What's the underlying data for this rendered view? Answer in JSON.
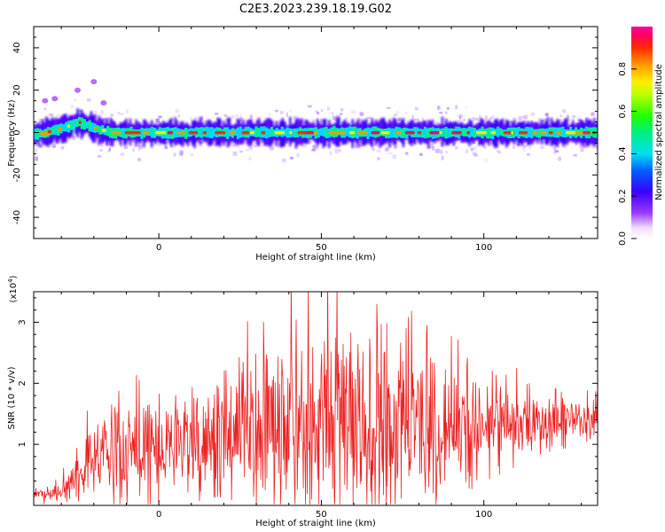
{
  "title": "C2E3.2023.239.18.19.G02",
  "chart_data": [
    {
      "type": "heatmap",
      "xlabel": "Height of straight line (km)",
      "ylabel": "Frequency (Hz)",
      "xlim": [
        -38.5,
        135
      ],
      "ylim": [
        -50,
        50
      ],
      "x_ticks": [
        0,
        50,
        100
      ],
      "y_ticks": [
        -40,
        -20,
        0,
        20,
        40
      ],
      "colorbar": {
        "label": "Normalized spectral amplitude",
        "range": [
          0,
          1
        ],
        "ticks": [
          0.0,
          0.2,
          0.4,
          0.6,
          0.8
        ],
        "colormap": "rainbow (white → purple → blue → cyan → green → yellow → orange → red → magenta)"
      },
      "ridge": {
        "description": "Dominant energy concentrated near 0 Hz across all heights; slightly positive (~+5 Hz) near -25 km",
        "center_hz": [
          [
            -38,
            -1
          ],
          [
            -30,
            2
          ],
          [
            -25,
            5
          ],
          [
            -20,
            2
          ],
          [
            -15,
            0
          ],
          [
            0,
            0
          ],
          [
            50,
            0
          ],
          [
            100,
            0
          ],
          [
            135,
            0
          ]
        ],
        "half_width_hz": 5
      },
      "outliers": [
        [
          -35,
          15
        ],
        [
          -32,
          16
        ],
        [
          -25,
          20
        ],
        [
          -20,
          24
        ],
        [
          -17,
          14
        ]
      ]
    },
    {
      "type": "line",
      "xlabel": "Height of straight line (km)",
      "ylabel": "SNR (10 * v/v)",
      "y_multiplier_label": "(x10",
      "y_multiplier_exp": "4",
      "y_multiplier_close": ")",
      "xlim": [
        -38.5,
        135
      ],
      "ylim": [
        0,
        3.5
      ],
      "x_ticks": [
        0,
        50,
        100
      ],
      "y_ticks": [
        1,
        2,
        3
      ],
      "color": "#ee2222",
      "envelope": {
        "x": [
          -38.5,
          -30,
          -23,
          -15,
          -5,
          5,
          15,
          25,
          35,
          45,
          55,
          65,
          75,
          85,
          95,
          105,
          115,
          125,
          135
        ],
        "mean": [
          0.15,
          0.25,
          0.6,
          0.8,
          1.0,
          1.05,
          1.15,
          1.3,
          1.35,
          1.35,
          1.35,
          1.3,
          1.3,
          1.25,
          1.25,
          1.3,
          1.35,
          1.4,
          1.45
        ],
        "amplitude": [
          0.1,
          0.2,
          0.6,
          0.7,
          0.9,
          0.9,
          1.0,
          1.4,
          1.6,
          1.9,
          1.8,
          1.7,
          1.5,
          1.2,
          1.0,
          0.7,
          0.5,
          0.4,
          0.3
        ]
      },
      "peaks": [
        [
          -22,
          1.55
        ],
        [
          -6,
          2.05
        ],
        [
          26,
          2.35
        ],
        [
          46,
          3.7
        ],
        [
          67,
          3.3
        ],
        [
          76,
          2.9
        ],
        [
          110,
          2.25
        ],
        [
          114,
          2.0
        ]
      ]
    }
  ]
}
